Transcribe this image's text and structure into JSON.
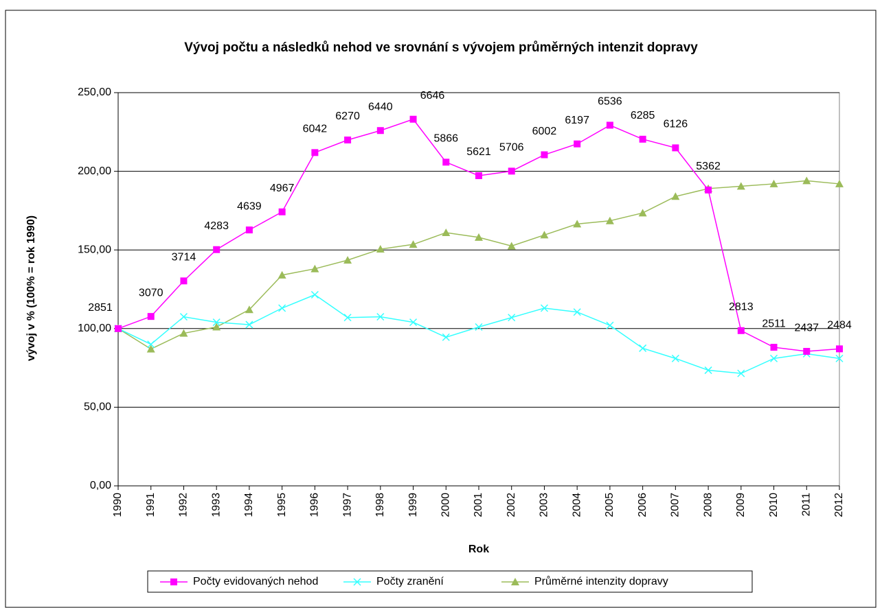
{
  "chart_data": {
    "type": "line",
    "title": "Vývoj počtu a následků nehod ve srovnání s vývojem průměrných intenzit dopravy",
    "x_label": "Rok",
    "y_label": "vývoj v % (100% = rok 1990)",
    "categories": [
      "1990",
      "1991",
      "1992",
      "1993",
      "1994",
      "1995",
      "1996",
      "1997",
      "1998",
      "1999",
      "2000",
      "2001",
      "2002",
      "2003",
      "2004",
      "2005",
      "2006",
      "2007",
      "2008",
      "2009",
      "2010",
      "2011",
      "2012"
    ],
    "series": [
      {
        "name": "Počty evidovaných nehod",
        "color": "#ff00ff",
        "marker": "square",
        "values": [
          100,
          107.7,
          130.3,
          150.2,
          162.7,
          174.2,
          211.9,
          219.9,
          225.9,
          233.1,
          205.8,
          197.2,
          200.1,
          210.5,
          217.4,
          229.3,
          220.4,
          214.9,
          188.1,
          98.7,
          88.1,
          85.5,
          87.1
        ],
        "point_labels": [
          "2851",
          "3070",
          "3714",
          "4283",
          "4639",
          "4967",
          "6042",
          "6270",
          "6440",
          "6646",
          "5866",
          "5621",
          "5706",
          "6002",
          "6197",
          "6536",
          "6285",
          "6126",
          "5362",
          "2813",
          "2511",
          "2437",
          "2484"
        ]
      },
      {
        "name": "Počty zranění",
        "color": "#33ffff",
        "marker": "x",
        "values": [
          100,
          90,
          107.5,
          104,
          102.5,
          113,
          121.5,
          107,
          107.5,
          104,
          94.5,
          101,
          107,
          113,
          110.5,
          102,
          87.5,
          81,
          73.5,
          71.5,
          81,
          84,
          81
        ]
      },
      {
        "name": "Průměrné intenzity dopravy",
        "color": "#9bbb59",
        "marker": "triangle",
        "values": [
          100,
          87,
          97,
          101,
          112,
          134,
          138,
          143.5,
          150.5,
          153.5,
          161,
          158,
          152.5,
          159.5,
          166.5,
          168.5,
          173.5,
          184,
          189,
          190.5,
          192,
          194,
          192
        ]
      }
    ],
    "ylim": [
      0,
      250
    ],
    "yticks": [
      {
        "value": 0,
        "label": "0,00"
      },
      {
        "value": 50,
        "label": "50,00"
      },
      {
        "value": 100,
        "label": "100,00"
      },
      {
        "value": 150,
        "label": "150,00"
      },
      {
        "value": 200,
        "label": "200,00"
      },
      {
        "value": 250,
        "label": "250,00"
      }
    ],
    "grid": true,
    "legend": "bottom"
  }
}
